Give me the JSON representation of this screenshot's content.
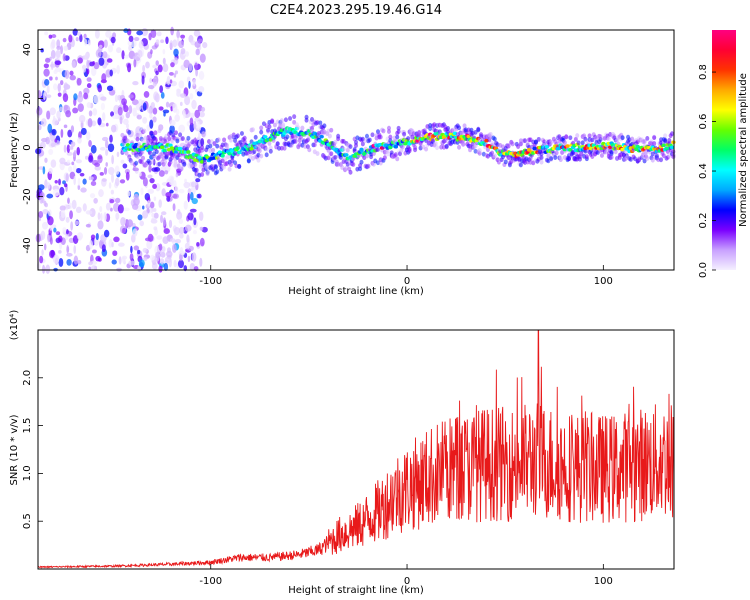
{
  "title": "C2E4.2023.295.19.46.G14",
  "chart_data": [
    {
      "type": "heatmap",
      "xlabel": "Height of straight line (km)",
      "ylabel": "Frequency (Hz)",
      "xlim": [
        -188,
        136
      ],
      "ylim": [
        -50,
        48
      ],
      "xticks": [
        -100,
        0,
        100
      ],
      "yticks": [
        -40,
        -20,
        0,
        20,
        40
      ],
      "colorbar": {
        "label": "Normalized spectral amplitude",
        "range": [
          0,
          0.97
        ],
        "ticks": [
          0.0,
          0.2,
          0.4,
          0.6,
          0.8
        ],
        "colormap": [
          "#f5f0ff",
          "#c8a0ff",
          "#7a00ff",
          "#0000ff",
          "#00aaff",
          "#00ffff",
          "#00ff66",
          "#66ff00",
          "#ffff00",
          "#ffaa00",
          "#ff3300",
          "#ff0033",
          "#ff0080"
        ]
      },
      "ridge": {
        "x": [
          -140,
          -120,
          -105,
          -95,
          -80,
          -70,
          -60,
          -50,
          -40,
          -30,
          -20,
          -10,
          0,
          10,
          20,
          30,
          40,
          50,
          60,
          70,
          80,
          90,
          100,
          110,
          120,
          130,
          136
        ],
        "frequency": [
          0,
          0,
          -5,
          -3,
          0,
          4,
          7,
          6,
          2,
          -4,
          -1,
          1,
          2,
          4,
          5,
          4,
          2,
          -3,
          -2,
          -1,
          0,
          0,
          1,
          0,
          -1,
          0,
          1
        ]
      }
    },
    {
      "type": "line",
      "xlabel": "Height of straight line (km)",
      "ylabel": "SNR (10 * v/v)",
      "multiplier": "(x10⁴)",
      "xlim": [
        -188,
        136
      ],
      "ylim": [
        0,
        2.5
      ],
      "xticks": [
        -100,
        0,
        100
      ],
      "yticks": [
        0.5,
        1.0,
        1.5,
        2.0
      ],
      "color": "#e8191a",
      "envelope": {
        "x": [
          -188,
          -150,
          -120,
          -100,
          -85,
          -70,
          -55,
          -45,
          -35,
          -25,
          -15,
          -5,
          5,
          15,
          25,
          40,
          55,
          65,
          75,
          90,
          105,
          120,
          136
        ],
        "y": [
          0.02,
          0.03,
          0.05,
          0.07,
          0.12,
          0.12,
          0.15,
          0.2,
          0.35,
          0.45,
          0.6,
          0.8,
          0.9,
          1.0,
          1.05,
          1.1,
          1.1,
          1.15,
          1.1,
          1.05,
          1.05,
          1.1,
          1.15
        ]
      },
      "peak": {
        "x": 67,
        "y": 2.5
      }
    }
  ]
}
